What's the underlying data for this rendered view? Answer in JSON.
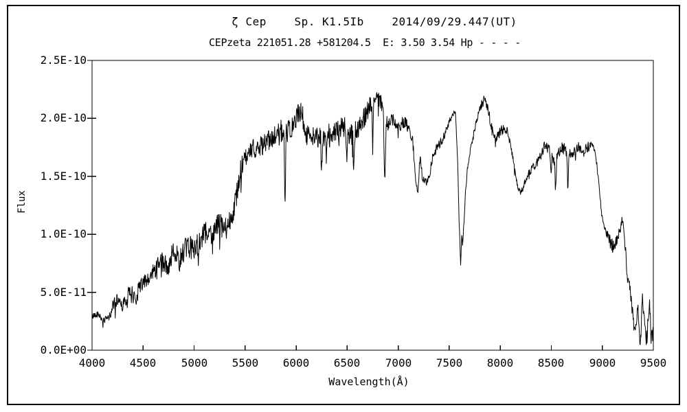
{
  "page": {
    "background": "#ffffff",
    "frame_color": "#000000",
    "line_color": "#000000"
  },
  "header": {
    "title": "ζ Cep    Sp. K1.5Ib    2014/09/29.447(UT)",
    "subtitle": "CEPzeta 221051.28 +581204.5  E: 3.50 3.54 Hp - - - -"
  },
  "chart_data": {
    "type": "line",
    "title": "ζ Cep    Sp. K1.5Ib    2014/09/29.447(UT)",
    "subtitle": "CEPzeta 221051.28 +581204.5  E: 3.50 3.54 Hp - - - -",
    "xlabel": "Wavelength(Å)",
    "ylabel": "Flux",
    "xlim": [
      4000,
      9500
    ],
    "ylim": [
      0,
      2.5e-10
    ],
    "grid": false,
    "legend": "none",
    "x_ticks": [
      4000,
      4500,
      5000,
      5500,
      6000,
      6500,
      7000,
      7500,
      8000,
      8500,
      9000,
      9500
    ],
    "x_tick_labels": [
      "4000",
      "4500",
      "5000",
      "5500",
      "6000",
      "6500",
      "7000",
      "7500",
      "8000",
      "8500",
      "9000",
      "9500"
    ],
    "y_ticks": [
      2.5e-10,
      2e-10,
      1.5e-10,
      1e-10,
      5e-11,
      0.0
    ],
    "y_tick_labels": [
      "2.5E-10",
      "2.0E-10",
      "1.5E-10",
      "1.0E-10",
      "5.0E-11",
      "0.0E+00"
    ],
    "series_name": "zeta Cep spectrum",
    "flux_unit_scale": 1e-10,
    "continuum_points": [
      [
        4000,
        0.29
      ],
      [
        4040,
        0.32
      ],
      [
        4080,
        0.3
      ],
      [
        4120,
        0.26
      ],
      [
        4160,
        0.28
      ],
      [
        4190,
        0.33
      ],
      [
        4210,
        0.43
      ],
      [
        4240,
        0.43
      ],
      [
        4270,
        0.44
      ],
      [
        4300,
        0.39
      ],
      [
        4330,
        0.44
      ],
      [
        4360,
        0.5
      ],
      [
        4400,
        0.5
      ],
      [
        4430,
        0.44
      ],
      [
        4460,
        0.55
      ],
      [
        4500,
        0.6
      ],
      [
        4540,
        0.58
      ],
      [
        4580,
        0.66
      ],
      [
        4620,
        0.71
      ],
      [
        4660,
        0.76
      ],
      [
        4700,
        0.77
      ],
      [
        4740,
        0.72
      ],
      [
        4780,
        0.82
      ],
      [
        4820,
        0.87
      ],
      [
        4860,
        0.84
      ],
      [
        4900,
        0.87
      ],
      [
        4950,
        0.9
      ],
      [
        5000,
        0.89
      ],
      [
        5050,
        0.95
      ],
      [
        5100,
        1.0
      ],
      [
        5150,
        1.04
      ],
      [
        5200,
        1.06
      ],
      [
        5250,
        1.1
      ],
      [
        5300,
        1.03
      ],
      [
        5350,
        1.14
      ],
      [
        5400,
        1.26
      ],
      [
        5440,
        1.5
      ],
      [
        5480,
        1.63
      ],
      [
        5520,
        1.67
      ],
      [
        5560,
        1.71
      ],
      [
        5600,
        1.77
      ],
      [
        5640,
        1.74
      ],
      [
        5680,
        1.8
      ],
      [
        5720,
        1.82
      ],
      [
        5760,
        1.81
      ],
      [
        5800,
        1.86
      ],
      [
        5840,
        1.91
      ],
      [
        5880,
        1.89
      ],
      [
        5920,
        1.89
      ],
      [
        5960,
        1.92
      ],
      [
        6000,
        2.0
      ],
      [
        6030,
        2.09
      ],
      [
        6060,
        2.04
      ],
      [
        6090,
        1.9
      ],
      [
        6120,
        1.85
      ],
      [
        6150,
        1.88
      ],
      [
        6180,
        1.86
      ],
      [
        6220,
        1.83
      ],
      [
        6260,
        1.83
      ],
      [
        6300,
        1.84
      ],
      [
        6340,
        1.89
      ],
      [
        6380,
        1.88
      ],
      [
        6420,
        1.9
      ],
      [
        6460,
        1.94
      ],
      [
        6500,
        1.89
      ],
      [
        6540,
        1.87
      ],
      [
        6580,
        1.89
      ],
      [
        6620,
        1.95
      ],
      [
        6660,
        2.01
      ],
      [
        6700,
        2.08
      ],
      [
        6740,
        2.14
      ],
      [
        6770,
        2.22
      ],
      [
        6800,
        2.2
      ],
      [
        6830,
        2.14
      ],
      [
        6860,
        2.05
      ],
      [
        6900,
        1.96
      ],
      [
        6950,
        1.99
      ],
      [
        7000,
        1.92
      ],
      [
        7050,
        1.98
      ],
      [
        7100,
        1.93
      ],
      [
        7140,
        1.83
      ],
      [
        7170,
        1.5
      ],
      [
        7195,
        1.38
      ],
      [
        7215,
        1.7
      ],
      [
        7235,
        1.5
      ],
      [
        7265,
        1.44
      ],
      [
        7300,
        1.49
      ],
      [
        7335,
        1.66
      ],
      [
        7370,
        1.74
      ],
      [
        7410,
        1.79
      ],
      [
        7450,
        1.85
      ],
      [
        7490,
        1.95
      ],
      [
        7530,
        2.03
      ],
      [
        7560,
        2.06
      ],
      [
        7580,
        1.7
      ],
      [
        7598,
        1.1
      ],
      [
        7612,
        0.74
      ],
      [
        7622,
        1.02
      ],
      [
        7632,
        0.92
      ],
      [
        7645,
        1.12
      ],
      [
        7660,
        1.38
      ],
      [
        7680,
        1.58
      ],
      [
        7705,
        1.72
      ],
      [
        7740,
        1.87
      ],
      [
        7775,
        2.0
      ],
      [
        7810,
        2.11
      ],
      [
        7845,
        2.17
      ],
      [
        7875,
        2.11
      ],
      [
        7905,
        1.97
      ],
      [
        7935,
        1.86
      ],
      [
        7965,
        1.83
      ],
      [
        8000,
        1.89
      ],
      [
        8035,
        1.92
      ],
      [
        8070,
        1.89
      ],
      [
        8105,
        1.76
      ],
      [
        8140,
        1.57
      ],
      [
        8175,
        1.41
      ],
      [
        8205,
        1.36
      ],
      [
        8240,
        1.45
      ],
      [
        8275,
        1.52
      ],
      [
        8310,
        1.57
      ],
      [
        8350,
        1.61
      ],
      [
        8395,
        1.68
      ],
      [
        8440,
        1.79
      ],
      [
        8480,
        1.73
      ],
      [
        8535,
        1.62
      ],
      [
        8560,
        1.68
      ],
      [
        8600,
        1.77
      ],
      [
        8640,
        1.73
      ],
      [
        8700,
        1.67
      ],
      [
        8740,
        1.73
      ],
      [
        8780,
        1.76
      ],
      [
        8820,
        1.72
      ],
      [
        8860,
        1.76
      ],
      [
        8900,
        1.77
      ],
      [
        8930,
        1.72
      ],
      [
        8960,
        1.5
      ],
      [
        8990,
        1.2
      ],
      [
        9020,
        1.07
      ],
      [
        9050,
        1.0
      ],
      [
        9080,
        0.93
      ],
      [
        9110,
        0.89
      ],
      [
        9140,
        0.94
      ],
      [
        9170,
        1.02
      ],
      [
        9200,
        1.13
      ],
      [
        9215,
        1.04
      ],
      [
        9230,
        0.82
      ],
      [
        9245,
        0.65
      ],
      [
        9260,
        0.58
      ],
      [
        9275,
        0.5
      ],
      [
        9290,
        0.38
      ],
      [
        9310,
        0.23
      ],
      [
        9325,
        0.21
      ],
      [
        9340,
        0.33
      ],
      [
        9352,
        0.36
      ],
      [
        9365,
        0.13
      ],
      [
        9375,
        0.07
      ],
      [
        9385,
        0.3
      ],
      [
        9392,
        0.48
      ],
      [
        9400,
        0.36
      ],
      [
        9412,
        0.28
      ],
      [
        9425,
        0.18
      ],
      [
        9437,
        0.12
      ],
      [
        9450,
        0.28
      ],
      [
        9462,
        0.42
      ],
      [
        9472,
        0.25
      ],
      [
        9482,
        0.1
      ],
      [
        9492,
        0.18
      ],
      [
        9500,
        0.24
      ]
    ],
    "absorption_features": [
      [
        4101,
        0.05,
        9
      ],
      [
        4227,
        0.06,
        5
      ],
      [
        4340,
        0.06,
        8
      ],
      [
        4383,
        0.07,
        5
      ],
      [
        4861,
        0.1,
        8
      ],
      [
        5170,
        0.15,
        7
      ],
      [
        5890,
        0.62,
        7
      ],
      [
        6250,
        0.28,
        5
      ],
      [
        6495,
        0.3,
        5
      ],
      [
        6563,
        0.28,
        6
      ],
      [
        6750,
        0.5,
        5
      ],
      [
        6868,
        0.55,
        9
      ],
      [
        8498,
        0.13,
        6
      ],
      [
        8542,
        0.25,
        7
      ],
      [
        8662,
        0.27,
        7
      ]
    ],
    "noise_profile": [
      [
        4000,
        0.03
      ],
      [
        4150,
        0.03
      ],
      [
        4250,
        0.055
      ],
      [
        4500,
        0.075
      ],
      [
        4800,
        0.095
      ],
      [
        5100,
        0.11
      ],
      [
        5400,
        0.1
      ],
      [
        5700,
        0.095
      ],
      [
        6000,
        0.1
      ],
      [
        6300,
        0.1
      ],
      [
        6600,
        0.1
      ],
      [
        6800,
        0.075
      ],
      [
        6950,
        0.06
      ],
      [
        7100,
        0.055
      ],
      [
        7250,
        0.04
      ],
      [
        7450,
        0.035
      ],
      [
        7545,
        0.018
      ],
      [
        7700,
        0.022
      ],
      [
        7800,
        0.04
      ],
      [
        8000,
        0.048
      ],
      [
        8120,
        0.03
      ],
      [
        8250,
        0.028
      ],
      [
        8400,
        0.05
      ],
      [
        8650,
        0.055
      ],
      [
        8850,
        0.048
      ],
      [
        8935,
        0.028
      ],
      [
        9010,
        0.025
      ],
      [
        9100,
        0.065
      ],
      [
        9200,
        0.055
      ],
      [
        9300,
        0.06
      ],
      [
        9400,
        0.07
      ],
      [
        9500,
        0.06
      ]
    ],
    "noise_seed": 42,
    "samples": 1500
  }
}
